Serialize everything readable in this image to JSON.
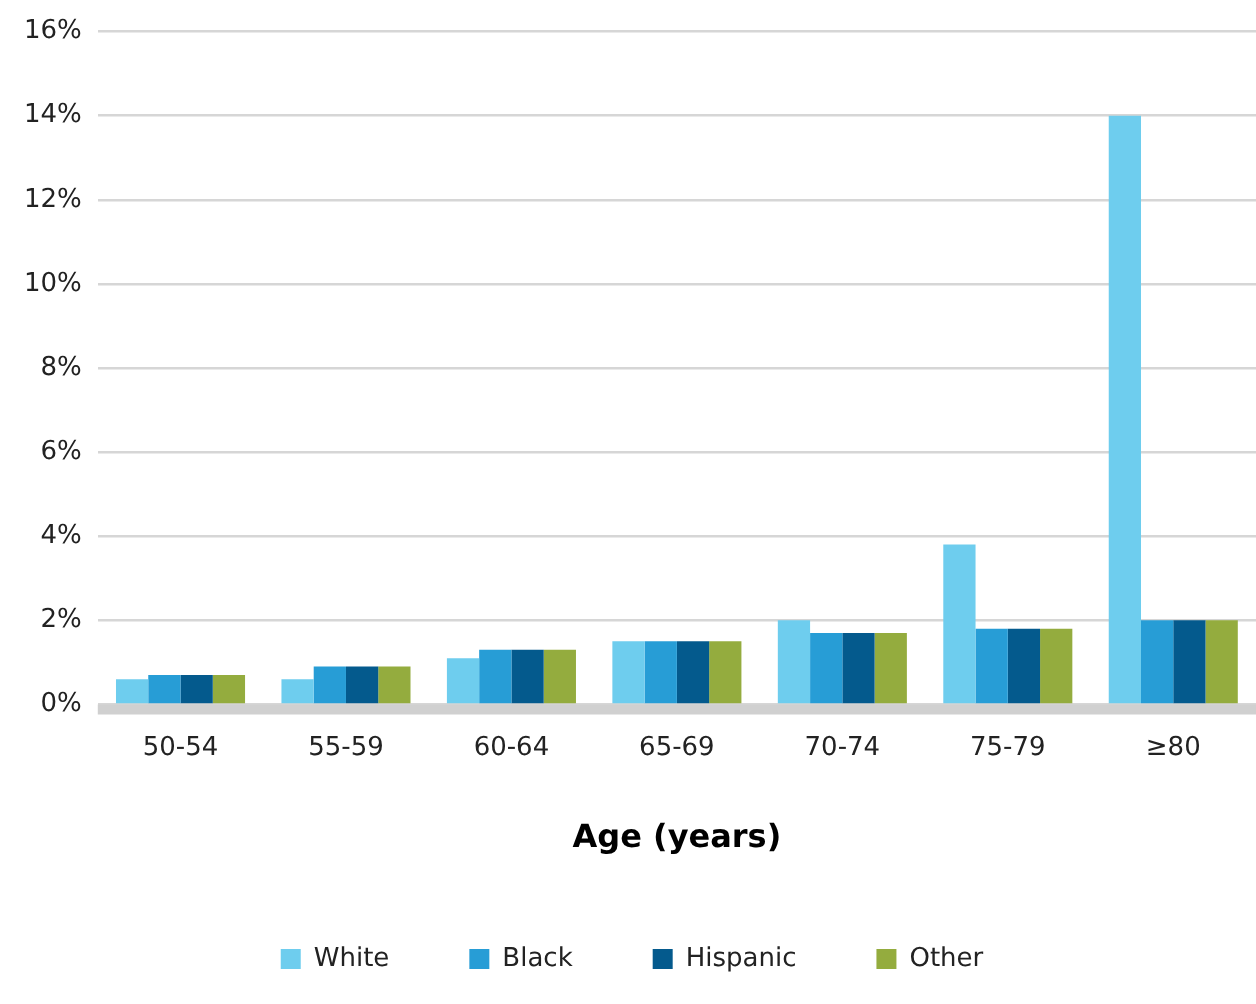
{
  "chart_data": {
    "type": "bar",
    "xlabel": "Age (years)",
    "categories": [
      "50-54",
      "55-59",
      "60-64",
      "65-69",
      "70-74",
      "75-79",
      "≥80"
    ],
    "series": [
      {
        "name": "White",
        "color": "#6ecdee",
        "values": [
          0.6,
          0.6,
          1.1,
          1.5,
          2.0,
          3.8,
          14
        ]
      },
      {
        "name": "Black",
        "color": "#279dd6",
        "values": [
          0.7,
          0.9,
          1.3,
          1.5,
          1.7,
          1.8,
          2.0
        ]
      },
      {
        "name": "Hispanic",
        "color": "#045a8d",
        "values": [
          0.7,
          0.9,
          1.3,
          1.5,
          1.7,
          1.8,
          2.0
        ]
      },
      {
        "name": "Other",
        "color": "#94ac3e",
        "values": [
          0.7,
          0.9,
          1.3,
          1.5,
          1.7,
          1.8,
          2.0
        ]
      }
    ],
    "ylim": [
      0,
      16
    ],
    "yticks": [
      {
        "value": 0,
        "label": "0%"
      },
      {
        "value": 2,
        "label": "2%"
      },
      {
        "value": 4,
        "label": "4%"
      },
      {
        "value": 6,
        "label": "6%"
      },
      {
        "value": 8,
        "label": "8%"
      },
      {
        "value": 10,
        "label": "10%"
      },
      {
        "value": 12,
        "label": "12%"
      },
      {
        "value": 14,
        "label": "14%"
      },
      {
        "value": 16,
        "label": "16%"
      }
    ],
    "grid": "y",
    "legend": "bottom"
  }
}
